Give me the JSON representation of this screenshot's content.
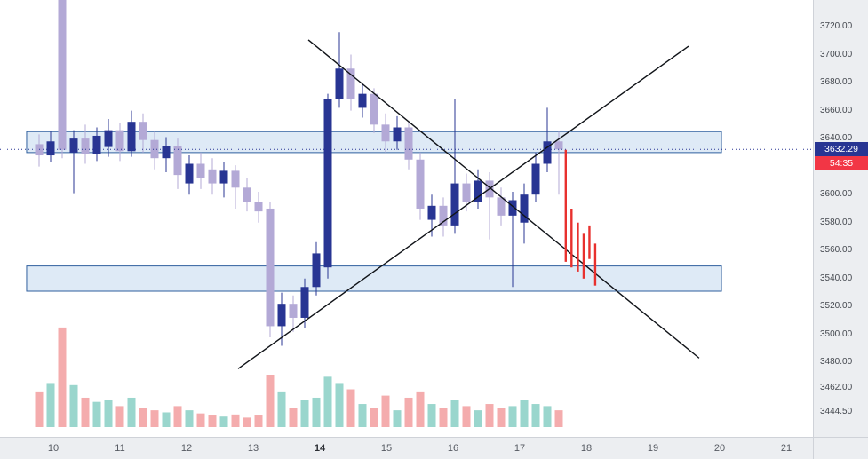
{
  "last_price": {
    "value": 3632.29,
    "label": "3632.29",
    "badge_bg": "#283593"
  },
  "countdown": {
    "value": "54:35",
    "badge_bg": "#f23645"
  },
  "price_axis": {
    "ticks": [
      {
        "value": 3720.0,
        "text": "3720.00"
      },
      {
        "value": 3700.0,
        "text": "3700.00"
      },
      {
        "value": 3680.0,
        "text": "3680.00"
      },
      {
        "value": 3660.0,
        "text": "3660.00"
      },
      {
        "value": 3640.0,
        "text": "3640.00"
      },
      {
        "value": 3600.0,
        "text": "3600.00"
      },
      {
        "value": 3580.0,
        "text": "3580.00"
      },
      {
        "value": 3560.0,
        "text": "3560.00"
      },
      {
        "value": 3540.0,
        "text": "3540.00"
      },
      {
        "value": 3520.0,
        "text": "3520.00"
      },
      {
        "value": 3500.0,
        "text": "3500.00"
      },
      {
        "value": 3480.0,
        "text": "3480.00"
      },
      {
        "value": 3462.0,
        "text": "3462.00"
      },
      {
        "value": 3444.5,
        "text": "3444.50"
      }
    ]
  },
  "time_axis": {
    "ticks": [
      {
        "text": "10",
        "bold": false
      },
      {
        "text": "11",
        "bold": false
      },
      {
        "text": "12",
        "bold": false
      },
      {
        "text": "13",
        "bold": false
      },
      {
        "text": "14",
        "bold": true
      },
      {
        "text": "15",
        "bold": false
      },
      {
        "text": "16",
        "bold": false
      },
      {
        "text": "17",
        "bold": false
      },
      {
        "text": "18",
        "bold": false
      },
      {
        "text": "19",
        "bold": false
      },
      {
        "text": "20",
        "bold": false
      },
      {
        "text": "21",
        "bold": false
      }
    ]
  },
  "chart_data": {
    "type": "candlestick",
    "ylim": [
      3427,
      3739
    ],
    "grid": false,
    "legend_position": "none",
    "title": "",
    "xlabel": "",
    "ylabel": "",
    "colors": {
      "up": "#283593",
      "down": "#b3a9d6",
      "vol_up": "#8fd1c8",
      "vol_down": "#f3a3a4",
      "zone_fill": "#c3d9ee",
      "zone_border": "#2f5f9e",
      "trendline": "#101318",
      "forecast_red": "#e8312e",
      "last_price_line": "#283593"
    },
    "candles_ohlcv": [
      [
        3636,
        3643,
        3620,
        3628,
        0.34
      ],
      [
        3628,
        3645,
        3623,
        3638,
        0.42
      ],
      [
        3742,
        3748,
        3626,
        3632,
        0.95
      ],
      [
        3630,
        3646,
        3601,
        3640,
        0.4
      ],
      [
        3640,
        3650,
        3622,
        3629,
        0.28
      ],
      [
        3629,
        3648,
        3624,
        3642,
        0.24
      ],
      [
        3634,
        3654,
        3627,
        3646,
        0.26
      ],
      [
        3646,
        3651,
        3624,
        3631,
        0.2
      ],
      [
        3631,
        3660,
        3627,
        3652,
        0.28
      ],
      [
        3652,
        3658,
        3630,
        3639,
        0.18
      ],
      [
        3639,
        3645,
        3618,
        3626,
        0.16
      ],
      [
        3626,
        3641,
        3616,
        3635,
        0.14
      ],
      [
        3635,
        3640,
        3604,
        3614,
        0.2
      ],
      [
        3608,
        3628,
        3600,
        3622,
        0.16
      ],
      [
        3622,
        3630,
        3604,
        3612,
        0.13
      ],
      [
        3618,
        3626,
        3600,
        3608,
        0.11
      ],
      [
        3608,
        3623,
        3598,
        3617,
        0.1
      ],
      [
        3617,
        3621,
        3590,
        3605,
        0.12
      ],
      [
        3605,
        3612,
        3588,
        3595,
        0.09
      ],
      [
        3595,
        3602,
        3580,
        3588,
        0.11
      ],
      [
        3590,
        3595,
        3498,
        3506,
        0.5
      ],
      [
        3506,
        3530,
        3492,
        3522,
        0.34
      ],
      [
        3522,
        3528,
        3502,
        3512,
        0.18
      ],
      [
        3512,
        3540,
        3505,
        3534,
        0.26
      ],
      [
        3534,
        3566,
        3528,
        3558,
        0.28
      ],
      [
        3548,
        3672,
        3540,
        3668,
        0.48
      ],
      [
        3668,
        3716,
        3662,
        3690,
        0.42
      ],
      [
        3690,
        3700,
        3660,
        3668,
        0.36
      ],
      [
        3662,
        3680,
        3655,
        3672,
        0.22
      ],
      [
        3672,
        3676,
        3644,
        3650,
        0.18
      ],
      [
        3650,
        3658,
        3630,
        3638,
        0.3
      ],
      [
        3638,
        3656,
        3632,
        3648,
        0.16
      ],
      [
        3648,
        3652,
        3618,
        3625,
        0.28
      ],
      [
        3625,
        3630,
        3582,
        3590,
        0.34
      ],
      [
        3582,
        3600,
        3570,
        3592,
        0.22
      ],
      [
        3592,
        3598,
        3570,
        3578,
        0.18
      ],
      [
        3578,
        3668,
        3572,
        3608,
        0.26
      ],
      [
        3608,
        3615,
        3588,
        3595,
        0.2
      ],
      [
        3595,
        3618,
        3590,
        3610,
        0.16
      ],
      [
        3610,
        3616,
        3568,
        3598,
        0.22
      ],
      [
        3598,
        3605,
        3578,
        3585,
        0.18
      ],
      [
        3585,
        3602,
        3534,
        3596,
        0.2
      ],
      [
        3580,
        3608,
        3565,
        3600,
        0.26
      ],
      [
        3600,
        3630,
        3595,
        3622,
        0.22
      ],
      [
        3622,
        3662,
        3616,
        3638,
        0.2
      ],
      [
        3638,
        3645,
        3600,
        3632.29,
        0.16
      ]
    ],
    "zones": [
      {
        "i1": -1.08,
        "i2": 59.08,
        "top": 3645,
        "bottom": 3630
      },
      {
        "i1": -1.08,
        "i2": 59.08,
        "top": 3549,
        "bottom": 3531
      }
    ],
    "trendlines": [
      {
        "i1": 23.31,
        "p1": 3710.5,
        "i2": 57.15,
        "p2": 3483.2
      },
      {
        "i1": 17.23,
        "p1": 3475.6,
        "i2": 56.23,
        "p2": 3706.0
      }
    ],
    "forecast_bars": [
      {
        "i": 45.6,
        "top": 3632,
        "bottom": 3552
      },
      {
        "i": 46.1,
        "top": 3590,
        "bottom": 3548
      },
      {
        "i": 46.65,
        "top": 3580,
        "bottom": 3545
      },
      {
        "i": 47.15,
        "top": 3572,
        "bottom": 3540
      },
      {
        "i": 47.65,
        "top": 3578,
        "bottom": 3554
      },
      {
        "i": 48.15,
        "top": 3565,
        "bottom": 3535
      }
    ]
  }
}
